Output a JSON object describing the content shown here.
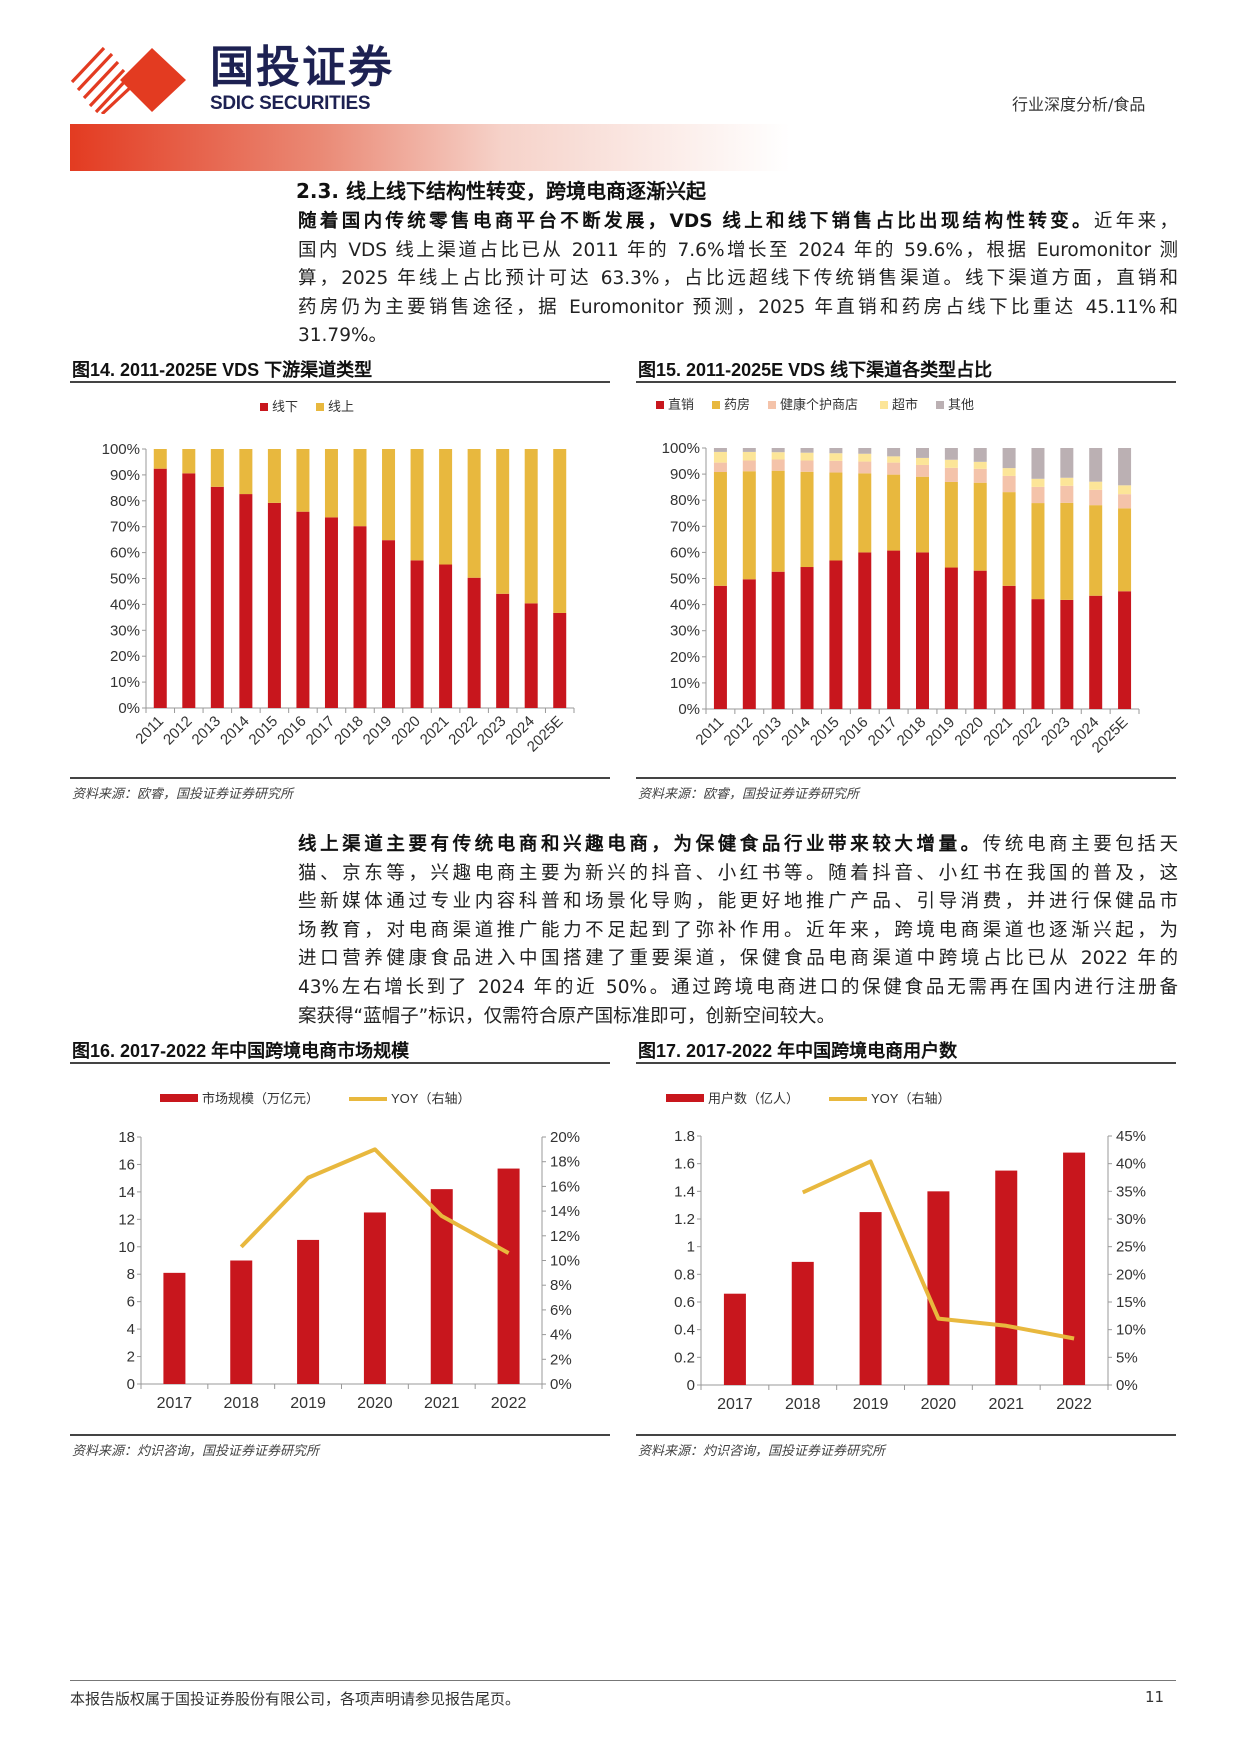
{
  "header": {
    "logo_cn": "国投证券",
    "logo_en": "SDIC SECURITIES",
    "category": "行业深度分析/食品"
  },
  "section": {
    "title": "2.3. 线上线下结构性转变，跨境电商逐渐兴起"
  },
  "paragraph1": {
    "lead": "随着国内传统零售电商平台不断发展，VDS 线上和线下销售占比出现结构性转变。",
    "lines": [
      "近年来，",
      "国内 VDS 线上渠道占比已从 2011 年的 7.6%增长至 2024 年的 59.6%，根据 Euromonitor 测",
      "算，2025 年线上占比预计可达 63.3%，占比远超线下传统销售渠道。线下渠道方面，直销和",
      "药房仍为主要销售途径，据 Euromonitor 预测，2025 年直销和药房占线下比重达 45.11%和",
      "31.79%。"
    ]
  },
  "paragraph2": {
    "lead": "线上渠道主要有传统电商和兴趣电商，为保健食品行业带来较大增量。",
    "lines": [
      "传统电商主要包括天",
      "猫、京东等，兴趣电商主要为新兴的抖音、小红书等。随着抖音、小红书在我国的普及，这",
      "些新媒体通过专业内容科普和场景化导购，能更好地推广产品、引导消费，并进行保健品市",
      "场教育，对电商渠道推广能力不足起到了弥补作用。近年来，跨境电商渠道也逐渐兴起，为",
      "进口营养健康食品进入中国搭建了重要渠道，保健食品电商渠道中跨境占比已从 2022 年的",
      "43%左右增长到了 2024 年的近 50%。通过跨境电商进口的保健食品无需再在国内进行注册备",
      "案获得“蓝帽子”标识，仅需符合原产国标准即可，创新空间较大。"
    ]
  },
  "figures": {
    "fig14_title": "图14. 2011-2025E VDS 下游渠道类型",
    "fig15_title": "图15. 2011-2025E VDS 线下渠道各类型占比",
    "fig16_title": "图16. 2017-2022 年中国跨境电商市场规模",
    "fig17_title": "图17. 2017-2022 年中国跨境电商用户数",
    "source_euromonitor": "资料来源：欧睿，国投证券证券研究所",
    "source_zhuoshi": "资料来源：灼识咨询，国投证券证券研究所"
  },
  "footer": {
    "text": "本报告版权属于国投证券股份有限公司，各项声明请参见报告尾页。",
    "page": "11"
  },
  "chart_data": [
    {
      "type": "bar",
      "stacked": true,
      "categories": [
        "2011",
        "2012",
        "2013",
        "2014",
        "2015",
        "2016",
        "2017",
        "2018",
        "2019",
        "2020",
        "2021",
        "2022",
        "2023",
        "2024",
        "2025E"
      ],
      "series": [
        {
          "name": "线下",
          "color": "#C8161D",
          "values": [
            92.4,
            90.6,
            85.4,
            82.6,
            79.2,
            75.8,
            73.6,
            70.2,
            64.8,
            57.0,
            55.4,
            50.3,
            44.1,
            40.4,
            36.7
          ]
        },
        {
          "name": "线上",
          "color": "#E8B83E",
          "values": [
            7.6,
            9.4,
            14.6,
            17.4,
            20.8,
            24.2,
            26.4,
            29.8,
            35.2,
            43.0,
            44.6,
            49.7,
            55.9,
            59.6,
            63.3
          ]
        }
      ],
      "ylim": [
        0,
        100
      ],
      "yticks": [
        "0%",
        "10%",
        "20%",
        "30%",
        "40%",
        "50%",
        "60%",
        "70%",
        "80%",
        "90%",
        "100%"
      ],
      "legend": "top"
    },
    {
      "type": "bar",
      "stacked": true,
      "categories": [
        "2011",
        "2012",
        "2013",
        "2014",
        "2015",
        "2016",
        "2017",
        "2018",
        "2019",
        "2020",
        "2021",
        "2022",
        "2023",
        "2024",
        "2025E"
      ],
      "series": [
        {
          "name": "直销",
          "color": "#C8161D",
          "values": [
            47.2,
            49.7,
            52.6,
            54.4,
            56.9,
            60.0,
            60.7,
            60.0,
            54.2,
            53.0,
            47.2,
            42.1,
            41.8,
            43.4,
            45.11
          ]
        },
        {
          "name": "药房",
          "color": "#E8B83E",
          "values": [
            43.6,
            41.4,
            38.7,
            36.5,
            33.7,
            30.3,
            29.1,
            29.0,
            32.8,
            33.7,
            35.9,
            36.8,
            37.2,
            34.7,
            31.79
          ]
        },
        {
          "name": "健康个护商店",
          "color": "#F4C3AA",
          "values": [
            3.6,
            4.1,
            4.3,
            4.3,
            4.5,
            4.5,
            4.6,
            4.5,
            5.4,
            5.3,
            6.2,
            6.2,
            6.5,
            5.9,
            5.4
          ]
        },
        {
          "name": "超市",
          "color": "#FCE598",
          "values": [
            4.1,
            3.3,
            2.8,
            3.0,
            2.9,
            3.0,
            2.4,
            2.7,
            3.1,
            2.7,
            3.0,
            3.1,
            3.1,
            3.1,
            3.4
          ]
        },
        {
          "name": "其他",
          "color": "#BBB0B3",
          "values": [
            1.5,
            1.5,
            1.6,
            1.8,
            2.0,
            2.2,
            3.2,
            3.8,
            4.5,
            5.3,
            7.7,
            11.8,
            11.4,
            12.9,
            14.3
          ]
        }
      ],
      "ylim": [
        0,
        100
      ],
      "yticks": [
        "0%",
        "10%",
        "20%",
        "30%",
        "40%",
        "50%",
        "60%",
        "70%",
        "80%",
        "90%",
        "100%"
      ],
      "legend": "top"
    },
    {
      "type": "bar+line",
      "categories": [
        "2017",
        "2018",
        "2019",
        "2020",
        "2021",
        "2022"
      ],
      "bar": {
        "name": "市场规模（万亿元）",
        "color": "#C8161D",
        "values": [
          8.1,
          9.0,
          10.5,
          12.5,
          14.2,
          15.7
        ]
      },
      "line": {
        "name": "YOY（右轴）",
        "color": "#E8B83E",
        "values": [
          null,
          11.1,
          16.7,
          19.0,
          13.6,
          10.6
        ]
      },
      "ylim": [
        0,
        18
      ],
      "yticks": [
        "0",
        "2",
        "4",
        "6",
        "8",
        "10",
        "12",
        "14",
        "16",
        "18"
      ],
      "y2lim": [
        0,
        20
      ],
      "y2ticks": [
        "0%",
        "2%",
        "4%",
        "6%",
        "8%",
        "10%",
        "12%",
        "14%",
        "16%",
        "18%",
        "20%"
      ],
      "legend": "top"
    },
    {
      "type": "bar+line",
      "categories": [
        "2017",
        "2018",
        "2019",
        "2020",
        "2021",
        "2022"
      ],
      "bar": {
        "name": "用户数（亿人）",
        "color": "#C8161D",
        "values": [
          0.66,
          0.89,
          1.25,
          1.4,
          1.55,
          1.68
        ]
      },
      "line": {
        "name": "YOY（右轴）",
        "color": "#E8B83E",
        "values": [
          null,
          34.8,
          40.4,
          12.0,
          10.7,
          8.4
        ]
      },
      "ylim": [
        0,
        1.8
      ],
      "yticks": [
        "0",
        "0.2",
        "0.4",
        "0.6",
        "0.8",
        "1",
        "1.2",
        "1.4",
        "1.6",
        "1.8"
      ],
      "y2lim": [
        0,
        45
      ],
      "y2ticks": [
        "0%",
        "5%",
        "10%",
        "15%",
        "20%",
        "25%",
        "30%",
        "35%",
        "40%",
        "45%"
      ],
      "legend": "top"
    }
  ]
}
